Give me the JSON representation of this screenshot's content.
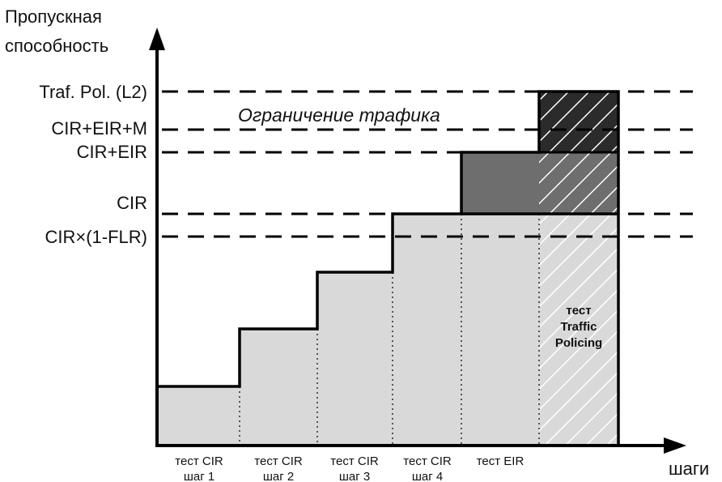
{
  "axes": {
    "y_title_line1": "Пропускная",
    "y_title_line2": "способность",
    "x_title": "шаги"
  },
  "levels": [
    {
      "id": "traf-pol",
      "label": "Traf. Pol. (L2)"
    },
    {
      "id": "cir-eir-m",
      "label": "CIR+EIR+M"
    },
    {
      "id": "cir-eir",
      "label": "CIR+EIR"
    },
    {
      "id": "cir",
      "label": "CIR"
    },
    {
      "id": "cir-flr",
      "label": "CIR×(1-FLR)"
    }
  ],
  "steps": [
    {
      "line1": "тест CIR",
      "line2": "шаг 1"
    },
    {
      "line1": "тест CIR",
      "line2": "шаг 2"
    },
    {
      "line1": "тест CIR",
      "line2": "шаг 3"
    },
    {
      "line1": "тест CIR",
      "line2": "шаг 4"
    },
    {
      "line1": "тест EIR",
      "line2": ""
    }
  ],
  "annotations": {
    "traffic_limit": "Ограничение трафика",
    "policing_line1": "тест",
    "policing_line2": "Traffic",
    "policing_line3": "Policing"
  },
  "colors": {
    "light_fill": "#d9d9d9",
    "mid_fill": "#6e6e6e",
    "dark_fill": "#2b2b2b",
    "stroke": "#000000"
  }
}
